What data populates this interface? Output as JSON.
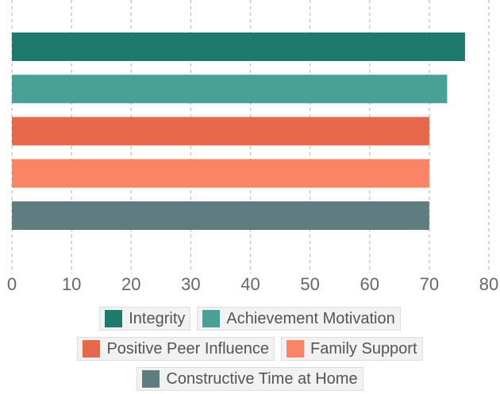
{
  "chart_data": {
    "type": "bar",
    "orientation": "horizontal",
    "series": [
      {
        "name": "Integrity",
        "color": "#1f7a6e",
        "values": [
          76
        ]
      },
      {
        "name": "Achievement Motivation",
        "color": "#48a096",
        "values": [
          73
        ]
      },
      {
        "name": "Positive Peer Influence",
        "color": "#e5684a",
        "values": [
          70
        ]
      },
      {
        "name": "Family Support",
        "color": "#fa8465",
        "values": [
          70
        ]
      },
      {
        "name": "Constructive Time at Home",
        "color": "#5f7d80",
        "values": [
          70
        ]
      }
    ],
    "xlim": [
      0,
      80
    ],
    "xticks": [
      0,
      10,
      20,
      30,
      40,
      50,
      60,
      70,
      80
    ],
    "grid": true,
    "legend": "bottom"
  }
}
